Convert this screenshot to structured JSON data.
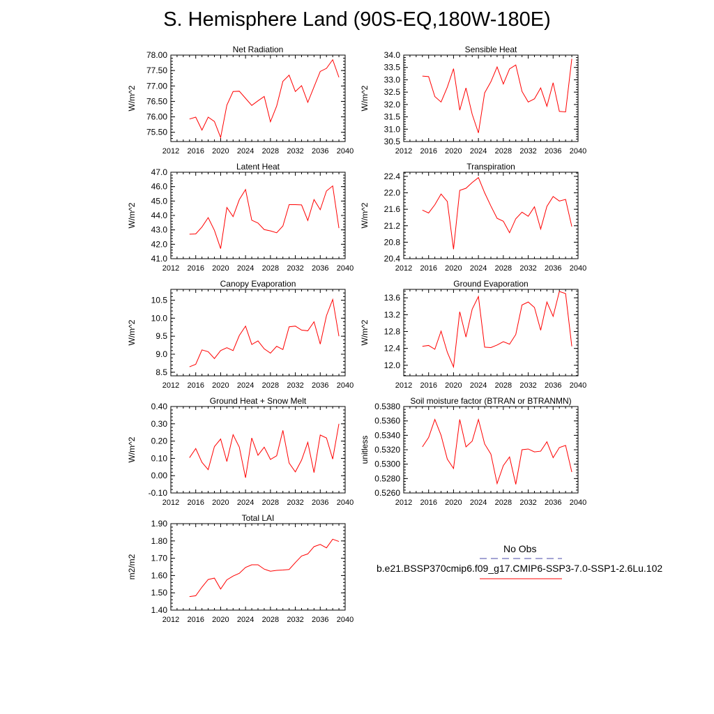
{
  "page": {
    "title": "S. Hemisphere Land (90S-EQ,180W-180E)"
  },
  "legend": {
    "obs_label": "No Obs",
    "obs_color": "#4a4aa8",
    "model_label": "b.e21.BSSP370cmip6.f09_g17.CMIP6-SSP3-7.0-SSP1-2.6Lu.102",
    "model_color": "#ff0000"
  },
  "chart_data": [
    {
      "type": "line",
      "title": "Net Radiation",
      "ylabel": "W/m^2",
      "xlim": [
        2012,
        2040
      ],
      "ylim": [
        75.2,
        78.0
      ],
      "xticks": [
        "2012",
        "2016",
        "2020",
        "2024",
        "2028",
        "2032",
        "2036",
        "2040"
      ],
      "yticks": [
        "75.50",
        "76.00",
        "76.50",
        "77.00",
        "77.50",
        "78.00"
      ],
      "x": [
        2015,
        2016,
        2017,
        2018,
        2019,
        2020,
        2021,
        2022,
        2023,
        2024,
        2025,
        2026,
        2027,
        2028,
        2029,
        2030,
        2031,
        2032,
        2033,
        2034,
        2035,
        2036,
        2037,
        2038,
        2039
      ],
      "series": [
        {
          "values": [
            75.93,
            75.99,
            75.57,
            75.99,
            75.85,
            75.33,
            76.38,
            76.82,
            76.83,
            76.6,
            76.37,
            76.52,
            76.66,
            75.84,
            76.35,
            77.15,
            77.35,
            76.82,
            77.01,
            76.47,
            76.97,
            77.47,
            77.57,
            77.85,
            77.28
          ]
        }
      ]
    },
    {
      "type": "line",
      "title": "Sensible Heat",
      "ylabel": "W/m^2",
      "xlim": [
        2012,
        2040
      ],
      "ylim": [
        30.5,
        34.0
      ],
      "xticks": [
        "2012",
        "2016",
        "2020",
        "2024",
        "2028",
        "2032",
        "2036",
        "2040"
      ],
      "yticks": [
        "30.5",
        "31.0",
        "31.5",
        "32.0",
        "32.5",
        "33.0",
        "33.5",
        "34.0"
      ],
      "x": [
        2015,
        2016,
        2017,
        2018,
        2019,
        2020,
        2021,
        2022,
        2023,
        2024,
        2025,
        2026,
        2027,
        2028,
        2029,
        2030,
        2031,
        2032,
        2033,
        2034,
        2035,
        2036,
        2037,
        2038,
        2039
      ],
      "series": [
        {
          "values": [
            33.15,
            33.13,
            32.32,
            32.1,
            32.7,
            33.45,
            31.77,
            32.67,
            31.6,
            30.85,
            32.47,
            32.92,
            33.52,
            32.83,
            33.44,
            33.6,
            32.53,
            32.1,
            32.23,
            32.67,
            31.93,
            32.88,
            31.72,
            31.7,
            33.85
          ]
        }
      ]
    },
    {
      "type": "line",
      "title": "Latent Heat",
      "ylabel": "W/m^2",
      "xlim": [
        2012,
        2040
      ],
      "ylim": [
        41.0,
        47.0
      ],
      "xticks": [
        "2012",
        "2016",
        "2020",
        "2024",
        "2028",
        "2032",
        "2036",
        "2040"
      ],
      "yticks": [
        "41.0",
        "42.0",
        "43.0",
        "44.0",
        "45.0",
        "46.0",
        "47.0"
      ],
      "x": [
        2015,
        2016,
        2017,
        2018,
        2019,
        2020,
        2021,
        2022,
        2023,
        2024,
        2025,
        2026,
        2027,
        2028,
        2029,
        2030,
        2031,
        2032,
        2033,
        2034,
        2035,
        2036,
        2037,
        2038,
        2039
      ],
      "series": [
        {
          "values": [
            42.7,
            42.72,
            43.2,
            43.85,
            42.97,
            41.7,
            44.55,
            43.92,
            45.1,
            45.8,
            43.67,
            43.47,
            43.02,
            42.93,
            42.8,
            43.27,
            44.75,
            44.75,
            44.73,
            43.65,
            45.1,
            44.4,
            45.7,
            46.05,
            43.12
          ]
        }
      ]
    },
    {
      "type": "line",
      "title": "Transpiration",
      "ylabel": "W/m^2",
      "xlim": [
        2012,
        2040
      ],
      "ylim": [
        20.4,
        22.5
      ],
      "xticks": [
        "2012",
        "2016",
        "2020",
        "2024",
        "2028",
        "2032",
        "2036",
        "2040"
      ],
      "yticks": [
        "20.4",
        "20.8",
        "21.2",
        "21.6",
        "22.0",
        "22.4"
      ],
      "x": [
        2015,
        2016,
        2017,
        2018,
        2019,
        2020,
        2021,
        2022,
        2023,
        2024,
        2025,
        2026,
        2027,
        2028,
        2029,
        2030,
        2031,
        2032,
        2033,
        2034,
        2035,
        2036,
        2037,
        2038,
        2039
      ],
      "series": [
        {
          "values": [
            21.58,
            21.51,
            21.71,
            21.97,
            21.79,
            20.63,
            22.06,
            22.11,
            22.25,
            22.37,
            22.0,
            21.68,
            21.38,
            21.31,
            21.03,
            21.37,
            21.53,
            21.43,
            21.66,
            21.12,
            21.67,
            21.91,
            21.8,
            21.84,
            21.18
          ]
        }
      ]
    },
    {
      "type": "line",
      "title": "Canopy Evaporation",
      "ylabel": "W/m^2",
      "xlim": [
        2012,
        2040
      ],
      "ylim": [
        8.4,
        10.8
      ],
      "xticks": [
        "2012",
        "2016",
        "2020",
        "2024",
        "2028",
        "2032",
        "2036",
        "2040"
      ],
      "yticks": [
        "8.5",
        "9.0",
        "9.5",
        "10.0",
        "10.5"
      ],
      "x": [
        2015,
        2016,
        2017,
        2018,
        2019,
        2020,
        2021,
        2022,
        2023,
        2024,
        2025,
        2026,
        2027,
        2028,
        2029,
        2030,
        2031,
        2032,
        2033,
        2034,
        2035,
        2036,
        2037,
        2038,
        2039
      ],
      "series": [
        {
          "values": [
            8.65,
            8.72,
            9.12,
            9.07,
            8.88,
            9.1,
            9.18,
            9.1,
            9.52,
            9.78,
            9.27,
            9.37,
            9.15,
            9.03,
            9.22,
            9.13,
            9.76,
            9.78,
            9.67,
            9.65,
            9.9,
            9.28,
            10.07,
            10.52,
            9.5
          ]
        }
      ]
    },
    {
      "type": "line",
      "title": "Ground Evaporation",
      "ylabel": "W/m^2",
      "xlim": [
        2012,
        2040
      ],
      "ylim": [
        11.75,
        13.8
      ],
      "xticks": [
        "2012",
        "2016",
        "2020",
        "2024",
        "2028",
        "2032",
        "2036",
        "2040"
      ],
      "yticks": [
        "12.0",
        "12.4",
        "12.8",
        "13.2",
        "13.6"
      ],
      "x": [
        2015,
        2016,
        2017,
        2018,
        2019,
        2020,
        2021,
        2022,
        2023,
        2024,
        2025,
        2026,
        2027,
        2028,
        2029,
        2030,
        2031,
        2032,
        2033,
        2034,
        2035,
        2036,
        2037,
        2038,
        2039
      ],
      "series": [
        {
          "values": [
            12.45,
            12.47,
            12.38,
            12.81,
            12.31,
            11.96,
            13.27,
            12.67,
            13.33,
            13.63,
            12.43,
            12.42,
            12.48,
            12.56,
            12.5,
            12.73,
            13.43,
            13.5,
            13.37,
            12.83,
            13.5,
            13.16,
            13.75,
            13.7,
            12.45
          ]
        }
      ]
    },
    {
      "type": "line",
      "title": "Ground Heat + Snow Melt",
      "ylabel": "W/m^2",
      "xlim": [
        2012,
        2040
      ],
      "ylim": [
        -0.1,
        0.4
      ],
      "xticks": [
        "2012",
        "2016",
        "2020",
        "2024",
        "2028",
        "2032",
        "2036",
        "2040"
      ],
      "yticks": [
        "-0.10",
        "0.00",
        "0.10",
        "0.20",
        "0.30",
        "0.40"
      ],
      "x": [
        2015,
        2016,
        2017,
        2018,
        2019,
        2020,
        2021,
        2022,
        2023,
        2024,
        2025,
        2026,
        2027,
        2028,
        2029,
        2030,
        2031,
        2032,
        2033,
        2034,
        2035,
        2036,
        2037,
        2038,
        2039
      ],
      "series": [
        {
          "values": [
            0.104,
            0.157,
            0.077,
            0.035,
            0.168,
            0.212,
            0.082,
            0.237,
            0.165,
            -0.012,
            0.218,
            0.118,
            0.165,
            0.094,
            0.115,
            0.262,
            0.073,
            0.022,
            0.09,
            0.193,
            0.018,
            0.235,
            0.218,
            0.096,
            0.3
          ]
        }
      ]
    },
    {
      "type": "line",
      "title": "Soil moisture factor (BTRAN or BTRANMN)",
      "ylabel": "unitless",
      "xlim": [
        2012,
        2040
      ],
      "ylim": [
        0.526,
        0.538
      ],
      "xticks": [
        "2012",
        "2016",
        "2020",
        "2024",
        "2028",
        "2032",
        "2036",
        "2040"
      ],
      "yticks": [
        "0.5260",
        "0.5280",
        "0.5300",
        "0.5320",
        "0.5340",
        "0.5360",
        "0.5380"
      ],
      "x": [
        2015,
        2016,
        2017,
        2018,
        2019,
        2020,
        2021,
        2022,
        2023,
        2024,
        2025,
        2026,
        2027,
        2028,
        2029,
        2030,
        2031,
        2032,
        2033,
        2034,
        2035,
        2036,
        2037,
        2038,
        2039
      ],
      "series": [
        {
          "values": [
            0.5324,
            0.5337,
            0.5362,
            0.534,
            0.5307,
            0.5294,
            0.5362,
            0.5324,
            0.5332,
            0.5362,
            0.5328,
            0.5314,
            0.5273,
            0.5298,
            0.531,
            0.5272,
            0.532,
            0.5321,
            0.5317,
            0.5318,
            0.5331,
            0.5309,
            0.5323,
            0.5326,
            0.5289
          ]
        }
      ]
    },
    {
      "type": "line",
      "title": "Total LAI",
      "ylabel": "m2/m2",
      "xlim": [
        2012,
        2040
      ],
      "ylim": [
        1.4,
        1.9
      ],
      "xticks": [
        "2012",
        "2016",
        "2020",
        "2024",
        "2028",
        "2032",
        "2036",
        "2040"
      ],
      "yticks": [
        "1.40",
        "1.50",
        "1.60",
        "1.70",
        "1.80",
        "1.90"
      ],
      "x": [
        2015,
        2016,
        2017,
        2018,
        2019,
        2020,
        2021,
        2022,
        2023,
        2024,
        2025,
        2026,
        2027,
        2028,
        2029,
        2030,
        2031,
        2032,
        2033,
        2034,
        2035,
        2036,
        2037,
        2038,
        2039
      ],
      "series": [
        {
          "values": [
            1.478,
            1.483,
            1.533,
            1.577,
            1.585,
            1.522,
            1.575,
            1.597,
            1.613,
            1.647,
            1.662,
            1.662,
            1.637,
            1.625,
            1.63,
            1.632,
            1.635,
            1.675,
            1.713,
            1.725,
            1.767,
            1.78,
            1.76,
            1.81,
            1.797
          ]
        }
      ]
    }
  ]
}
